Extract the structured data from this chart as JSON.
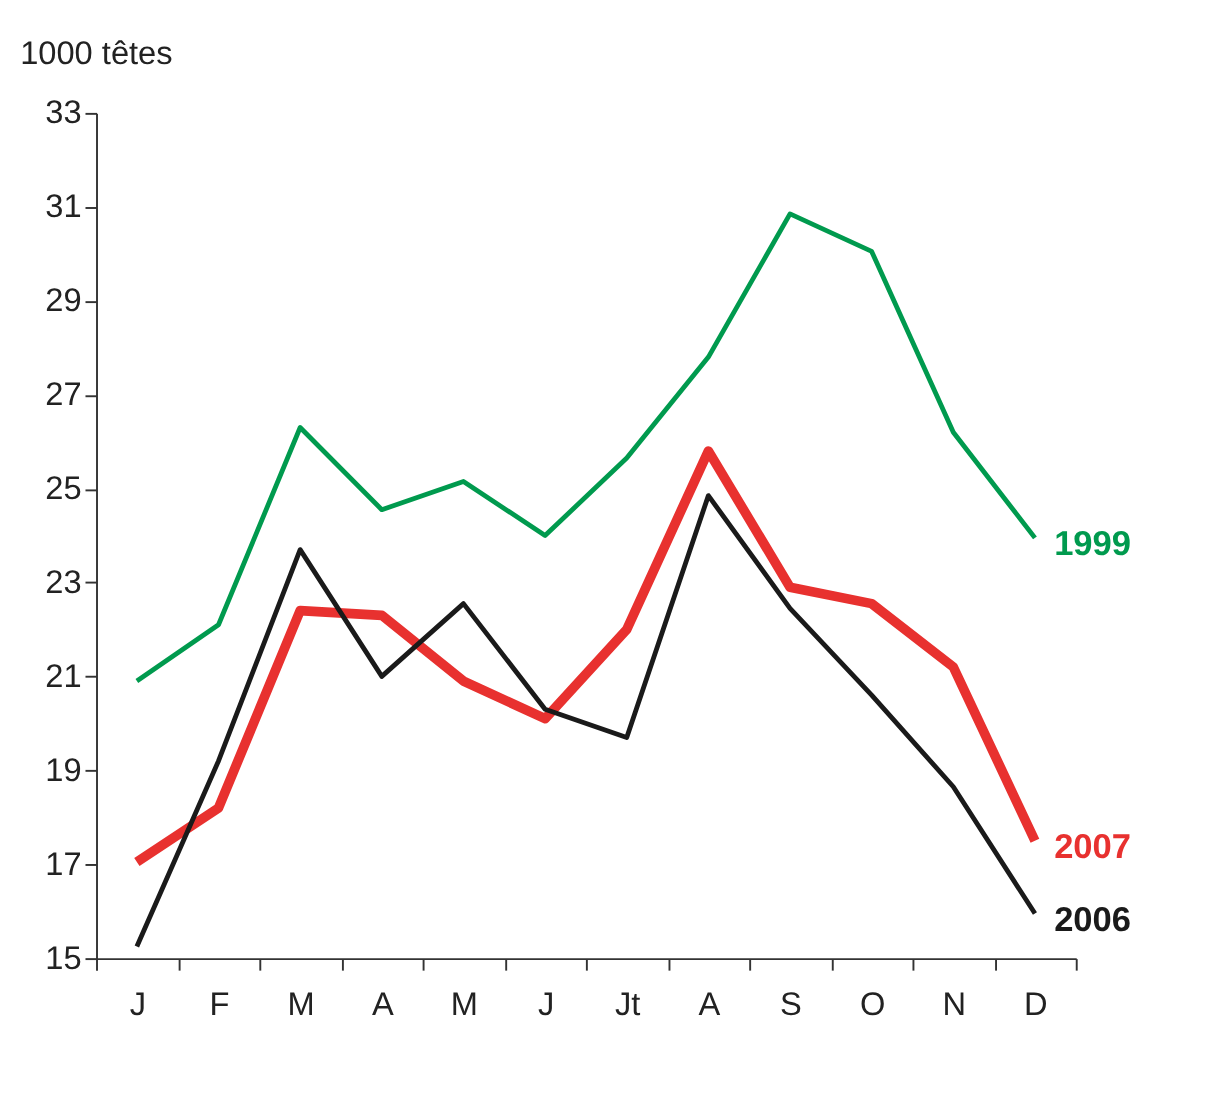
{
  "chart_data": {
    "type": "line",
    "ylabel": "1000 têtes",
    "categories": [
      "J",
      "F",
      "M",
      "A",
      "M",
      "J",
      "Jt",
      "A",
      "S",
      "O",
      "N",
      "D"
    ],
    "series": [
      {
        "name": "1999",
        "color": "#009a4e",
        "values": [
          20.9,
          22.1,
          26.3,
          24.55,
          25.15,
          24.0,
          25.65,
          27.8,
          30.85,
          30.05,
          26.2,
          23.95
        ]
      },
      {
        "name": "2007",
        "color": "#e8312f",
        "values": [
          17.05,
          18.2,
          22.4,
          22.3,
          20.9,
          20.1,
          22.0,
          25.8,
          22.9,
          22.55,
          21.2,
          17.5
        ]
      },
      {
        "name": "2006",
        "color": "#1a1a1a",
        "values": [
          15.25,
          19.2,
          23.7,
          21.0,
          22.55,
          20.3,
          19.7,
          24.85,
          22.45,
          20.6,
          18.65,
          15.95
        ]
      }
    ],
    "ylim": [
      15,
      33
    ],
    "yticks": [
      15,
      17,
      19,
      21,
      23,
      25,
      27,
      29,
      31,
      33
    ],
    "grid": false,
    "legend": false,
    "marker": "none",
    "line_style": "solid"
  }
}
